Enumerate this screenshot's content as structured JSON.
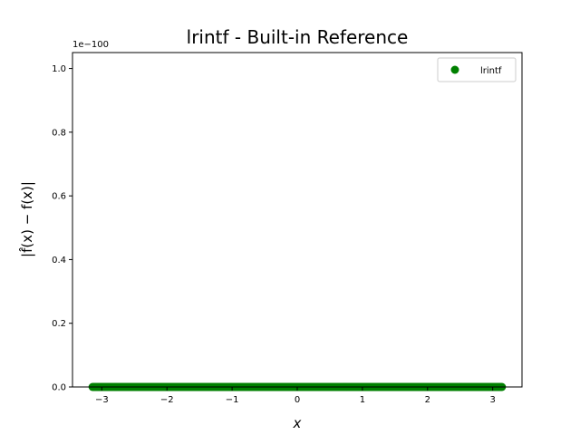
{
  "chart_data": {
    "type": "scatter",
    "title": "lrintf - Built-in Reference",
    "xlabel": "x",
    "ylabel": "|f̂(x) − f(x)|",
    "y_offset_label": "1e−100",
    "xlim": [
      -3.45,
      3.45
    ],
    "ylim": [
      0,
      1.05
    ],
    "x_ticks": [
      -3,
      -2,
      -1,
      0,
      1,
      2,
      3
    ],
    "x_tick_labels": [
      "−3",
      "−2",
      "−1",
      "0",
      "1",
      "2",
      "3"
    ],
    "y_ticks": [
      0.0,
      0.2,
      0.4,
      0.6,
      0.8,
      1.0
    ],
    "y_tick_labels": [
      "0.0",
      "0.2",
      "0.4",
      "0.6",
      "0.8",
      "1.0"
    ],
    "grid": false,
    "legend_position": "top-right",
    "series": [
      {
        "name": "lrintf",
        "color": "#008000",
        "marker": "circle",
        "x_range": [
          -3.14159,
          3.14159
        ],
        "y_value": 0
      }
    ]
  }
}
